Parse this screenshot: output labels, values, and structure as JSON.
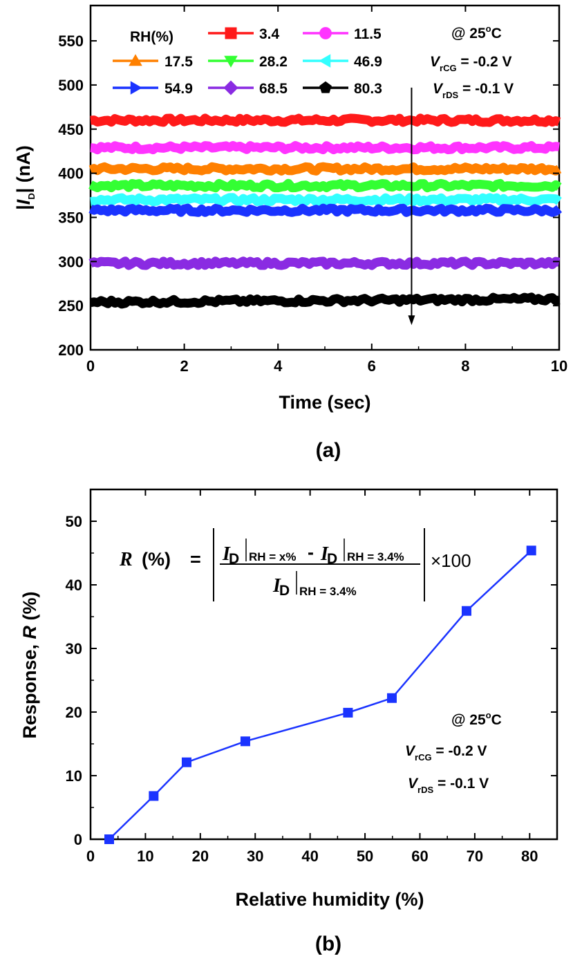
{
  "chart_data": [
    {
      "panel": "(a)",
      "type": "line",
      "xlabel": "Time (sec)",
      "ylabel": {
        "prefix": "|",
        "var": "I",
        "sub": "D",
        "suffix": "| (nA)"
      },
      "xlim": [
        0,
        10
      ],
      "ylim": [
        200,
        590
      ],
      "xticks": [
        0,
        2,
        4,
        6,
        8,
        10
      ],
      "yticks": [
        200,
        250,
        300,
        350,
        400,
        450,
        500,
        550
      ],
      "legend_title": "RH(%)",
      "legend_location": "top-left",
      "conditions": {
        "temp": {
          "text": "@ 25",
          "sup": "o",
          "unit": "C"
        },
        "vcg": {
          "var": "V",
          "sub": "rCG",
          "text": " = -0.2 V"
        },
        "vds": {
          "var": "V",
          "sub": "rDS",
          "text": " = -0.1 V"
        }
      },
      "series": [
        {
          "name": "3.4",
          "value": 460,
          "color": "#ff1a1a",
          "marker": "square"
        },
        {
          "name": "11.5",
          "value": 429,
          "color": "#ff33ff",
          "marker": "circle"
        },
        {
          "name": "17.5",
          "value": 405,
          "color": "#ff8000",
          "marker": "triangle-up"
        },
        {
          "name": "28.2",
          "value": 386,
          "color": "#33ff33",
          "marker": "triangle-down"
        },
        {
          "name": "46.9",
          "value": 370,
          "color": "#33ffff",
          "marker": "triangle-left"
        },
        {
          "name": "54.9",
          "value": 358,
          "color": "#1a33ff",
          "marker": "triangle-right"
        },
        {
          "name": "68.5",
          "value": 298,
          "color": "#8a2be2",
          "marker": "diamond"
        },
        {
          "name": "80.3",
          "value": 254,
          "color": "#000000",
          "marker": "pentagon"
        }
      ],
      "arrow": {
        "x": 6.85,
        "y_from": 497,
        "y_to": 228
      }
    },
    {
      "panel": "(b)",
      "type": "line",
      "xlabel": "Relative humidity (%)",
      "ylabel": {
        "prefix": "Response, ",
        "var": "R",
        "suffix": " (%)"
      },
      "xlim": [
        0,
        85
      ],
      "ylim": [
        0,
        55
      ],
      "xticks": [
        0,
        10,
        20,
        30,
        40,
        50,
        60,
        70,
        80
      ],
      "yticks": [
        0,
        10,
        20,
        30,
        40,
        50
      ],
      "color": "#1a33ff",
      "marker": "square",
      "x": [
        3.4,
        11.5,
        17.5,
        28.2,
        46.9,
        54.9,
        68.5,
        80.3
      ],
      "y": [
        0,
        6.8,
        12.1,
        15.4,
        19.9,
        22.2,
        35.9,
        45.4
      ],
      "formula": {
        "lhs_var": "R",
        "lhs_unit": "(%)",
        "eq": "=",
        "I": "I",
        "D": "D",
        "sub_x": "RH = x%",
        "sub_ref": "RH = 3.4%",
        "minus": "-",
        "times": "×100"
      },
      "conditions": {
        "temp": {
          "text": "@ 25",
          "sup": "o",
          "unit": "C"
        },
        "vcg": {
          "var": "V",
          "sub": "rCG",
          "text": " = -0.2 V"
        },
        "vds": {
          "var": "V",
          "sub": "rDS",
          "text": " = -0.1 V"
        }
      }
    }
  ]
}
